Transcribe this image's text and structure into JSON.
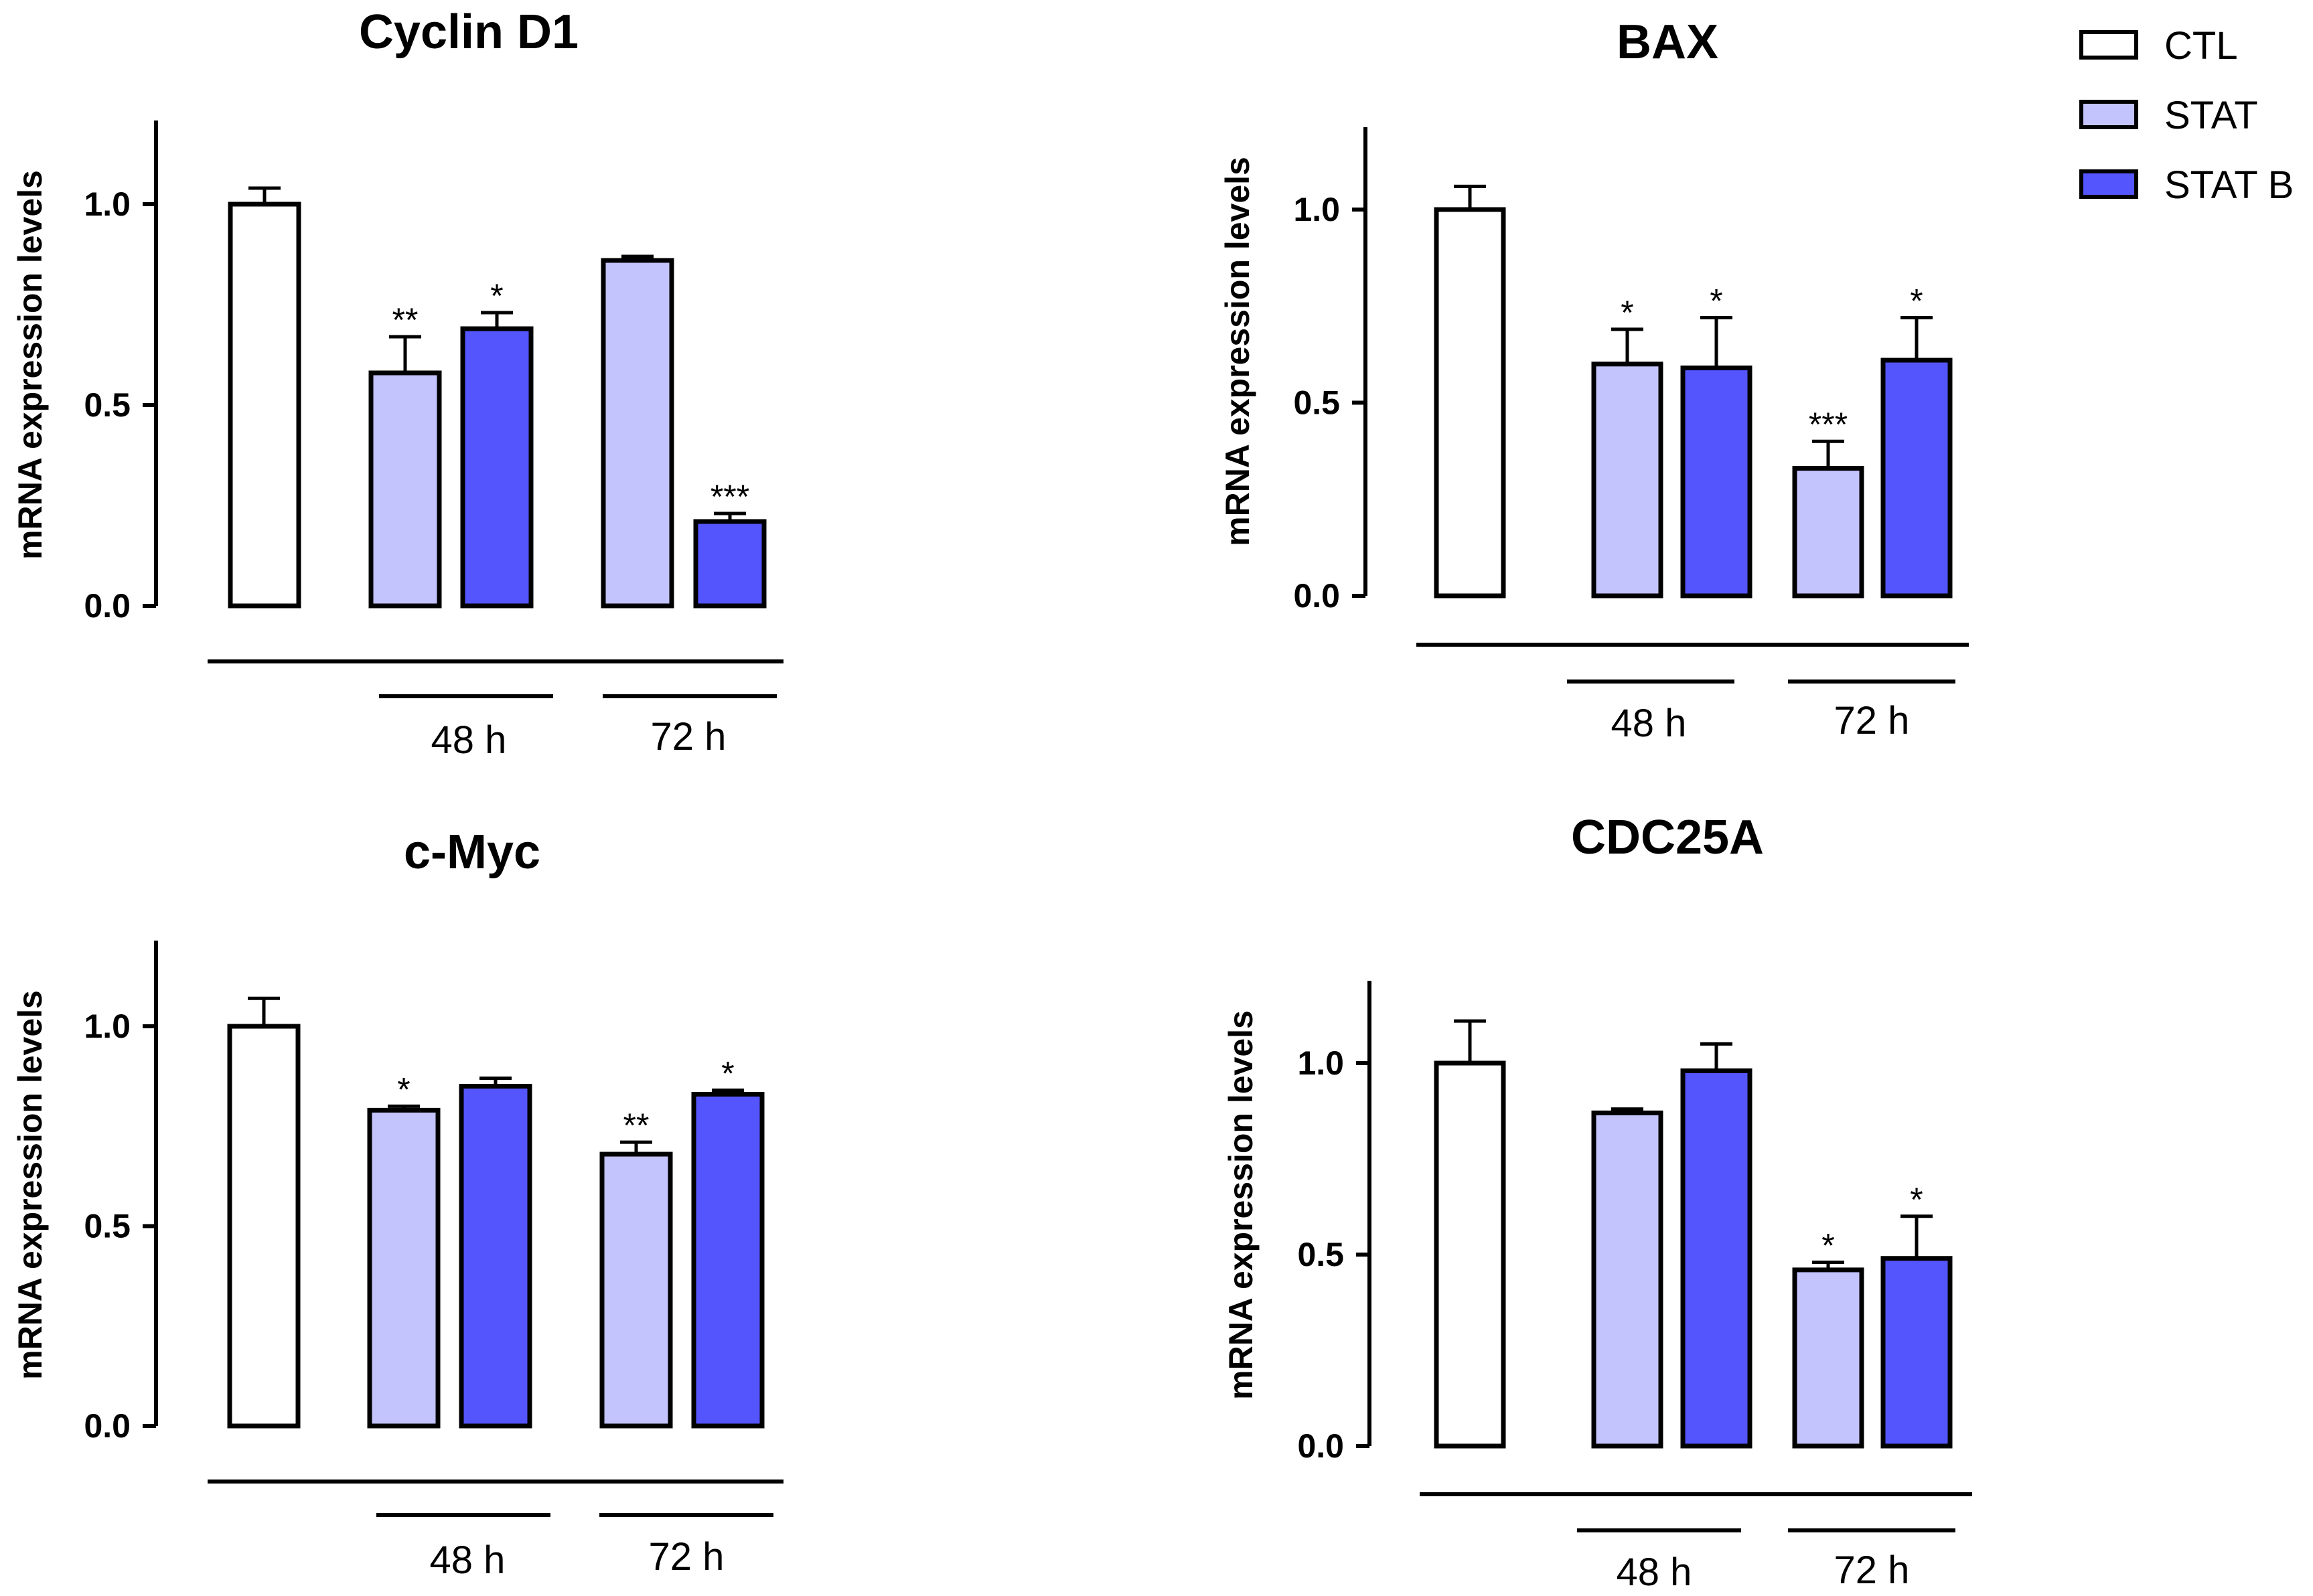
{
  "legend": {
    "items": [
      {
        "label": "CTL",
        "color": "#ffffff"
      },
      {
        "label": "STAT",
        "color": "#c3c3fd"
      },
      {
        "label": "STAT B",
        "color": "#5555fd"
      }
    ]
  },
  "colors": {
    "ctl": "#ffffff",
    "stat": "#c3c3fd",
    "statb": "#5555fd",
    "stroke": "#000000"
  },
  "chart_data": [
    {
      "type": "bar",
      "title": "Cyclin D1",
      "ylabel": "mRNA expression levels",
      "ylim": [
        0,
        1.2
      ],
      "yticks": [
        "0.0",
        "0.5",
        "1.0"
      ],
      "group_labels": [
        "48 h",
        "72 h"
      ],
      "categories": [
        "CTL",
        "STAT 48 h",
        "STAT B 48 h",
        "STAT 72 h",
        "STAT B 72 h"
      ],
      "values": [
        1.0,
        0.58,
        0.69,
        0.86,
        0.21
      ],
      "errors": [
        0.04,
        0.09,
        0.04,
        0.01,
        0.02
      ],
      "significance": [
        "",
        "**",
        "*",
        "",
        "***"
      ]
    },
    {
      "type": "bar",
      "title": "BAX",
      "ylabel": "mRNA expression levels",
      "ylim": [
        0,
        1.2
      ],
      "yticks": [
        "0.0",
        "0.5",
        "1.0"
      ],
      "group_labels": [
        "48 h",
        "72 h"
      ],
      "categories": [
        "CTL",
        "STAT 48 h",
        "STAT B 48 h",
        "STAT 72 h",
        "STAT B 72 h"
      ],
      "values": [
        1.0,
        0.6,
        0.59,
        0.33,
        0.61
      ],
      "errors": [
        0.06,
        0.09,
        0.13,
        0.07,
        0.11
      ],
      "significance": [
        "",
        "*",
        "*",
        "***",
        "*"
      ]
    },
    {
      "type": "bar",
      "title": "c-Myc",
      "ylabel": "mRNA expression levels",
      "ylim": [
        0,
        1.2
      ],
      "yticks": [
        "0.0",
        "0.5",
        "1.0"
      ],
      "group_labels": [
        "48 h",
        "72 h"
      ],
      "categories": [
        "CTL",
        "STAT 48 h",
        "STAT B 48 h",
        "STAT 72 h",
        "STAT B 72 h"
      ],
      "values": [
        1.0,
        0.79,
        0.85,
        0.68,
        0.83
      ],
      "errors": [
        0.07,
        0.01,
        0.02,
        0.03,
        0.01
      ],
      "significance": [
        "",
        "*",
        "",
        "**",
        "*"
      ]
    },
    {
      "type": "bar",
      "title": "CDC25A",
      "ylabel": "mRNA expression levels",
      "ylim": [
        0,
        1.2
      ],
      "yticks": [
        "0.0",
        "0.5",
        "1.0"
      ],
      "group_labels": [
        "48 h",
        "72 h"
      ],
      "categories": [
        "CTL",
        "STAT 48 h",
        "STAT B 48 h",
        "STAT 72 h",
        "STAT B 72 h"
      ],
      "values": [
        1.0,
        0.87,
        0.98,
        0.46,
        0.49
      ],
      "errors": [
        0.11,
        0.01,
        0.07,
        0.02,
        0.11
      ],
      "significance": [
        "",
        "",
        "",
        "*",
        "*"
      ]
    }
  ]
}
